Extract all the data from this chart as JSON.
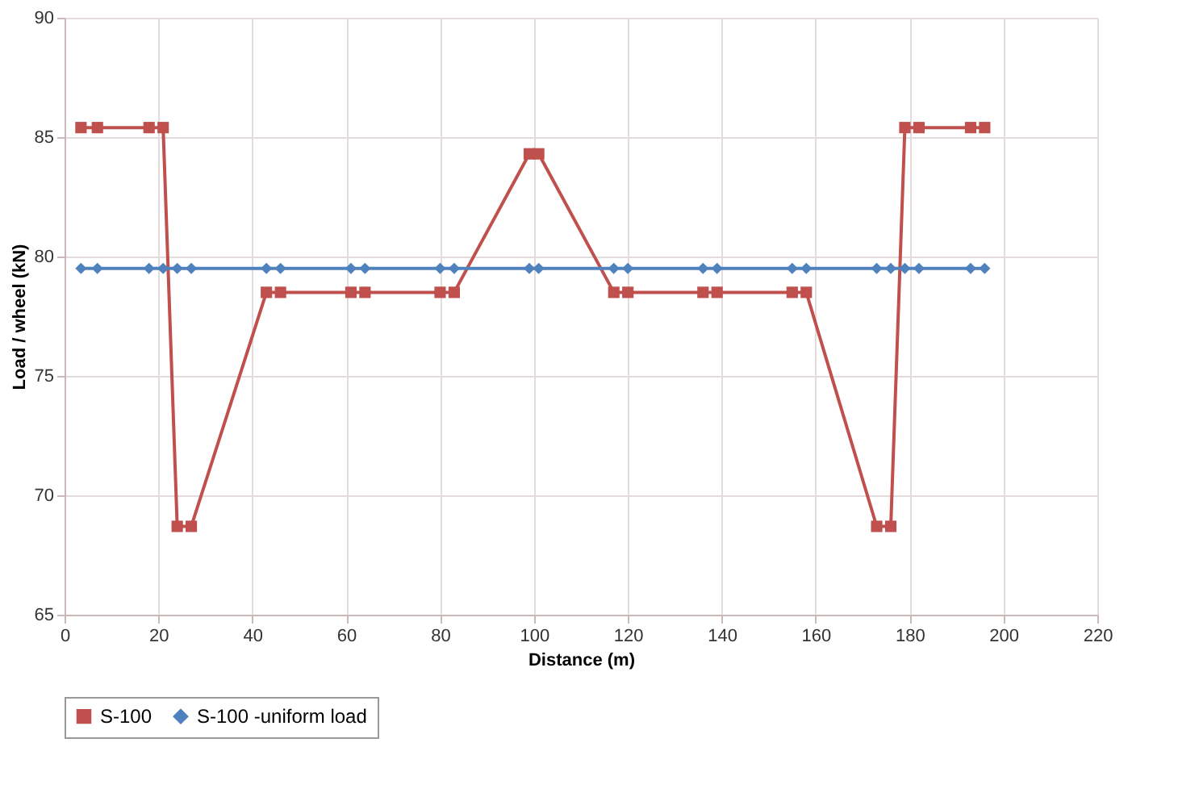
{
  "chart_data": {
    "type": "line",
    "xlabel": "Distance (m)",
    "ylabel": "Load / wheel  (kN)",
    "x": [
      3.5,
      7,
      18,
      21,
      24,
      27,
      43,
      46,
      61,
      64,
      80,
      83,
      99,
      101,
      117,
      120,
      136,
      139,
      155,
      158,
      173,
      176,
      179,
      182,
      193,
      196
    ],
    "series": [
      {
        "name": "S-100",
        "color": "#c0504d",
        "marker": "square",
        "values": [
          85.4,
          85.4,
          85.4,
          85.4,
          68.7,
          68.7,
          78.5,
          78.5,
          78.5,
          78.5,
          78.5,
          78.5,
          84.3,
          84.3,
          78.5,
          78.5,
          78.5,
          78.5,
          78.5,
          78.5,
          68.7,
          68.7,
          85.4,
          85.4,
          85.4,
          85.4
        ]
      },
      {
        "name": "S-100 -uniform load",
        "color": "#4f81bd",
        "marker": "diamond",
        "values": [
          79.5,
          79.5,
          79.5,
          79.5,
          79.5,
          79.5,
          79.5,
          79.5,
          79.5,
          79.5,
          79.5,
          79.5,
          79.5,
          79.5,
          79.5,
          79.5,
          79.5,
          79.5,
          79.5,
          79.5,
          79.5,
          79.5,
          79.5,
          79.5,
          79.5,
          79.5
        ]
      }
    ],
    "xlim": [
      0,
      220
    ],
    "xticks": [
      0,
      20,
      40,
      60,
      80,
      100,
      120,
      140,
      160,
      180,
      200,
      220
    ],
    "ylim": [
      65,
      90
    ],
    "yticks": [
      65,
      70,
      75,
      80,
      85,
      90
    ],
    "grid": true,
    "legend": "bottom",
    "line_style": "solid"
  }
}
